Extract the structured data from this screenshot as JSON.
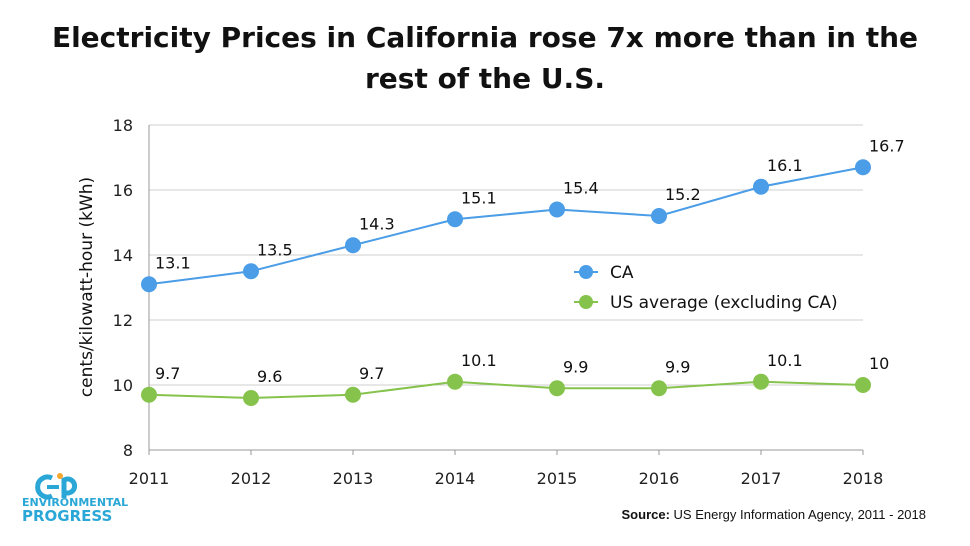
{
  "colors": {
    "ca": "#4a9de6",
    "us": "#86c34c",
    "grid": "#cfcfcf",
    "axis": "#999999",
    "logo": "#2aa7d6"
  },
  "logo": {
    "line1": "ENVIRONMENTAL",
    "line2": "PROGRESS",
    "icon": "environmental-progress-logo-icon"
  },
  "source": {
    "label": "Source:",
    "text": "US Energy Information Agency, 2011 - 2018"
  },
  "chart_data": {
    "type": "line",
    "title_lines": [
      "Electricity Prices in California rose 7x more than in the",
      "rest of the U.S."
    ],
    "xlabel": "",
    "ylabel": "cents/kilowatt-hour (kWh)",
    "ylim": [
      8,
      18
    ],
    "yticks": [
      "8",
      "10",
      "12",
      "14",
      "16",
      "18"
    ],
    "grid": "horizontal",
    "legend_position": "right-middle",
    "categories": [
      "2011",
      "2012",
      "2013",
      "2014",
      "2015",
      "2016",
      "2017",
      "2018"
    ],
    "series": [
      {
        "name": "CA",
        "color_key": "ca",
        "values": [
          13.1,
          13.5,
          14.3,
          15.1,
          15.4,
          15.2,
          16.1,
          16.7
        ],
        "labels": [
          "13.1",
          "13.5",
          "14.3",
          "15.1",
          "15.4",
          "15.2",
          "16.1",
          "16.7"
        ]
      },
      {
        "name": "US average (excluding CA)",
        "color_key": "us",
        "values": [
          9.7,
          9.6,
          9.7,
          10.1,
          9.9,
          9.9,
          10.1,
          10.0
        ],
        "labels": [
          "9.7",
          "9.6",
          "9.7",
          "10.1",
          "9.9",
          "9.9",
          "10.1",
          "10"
        ]
      }
    ]
  }
}
